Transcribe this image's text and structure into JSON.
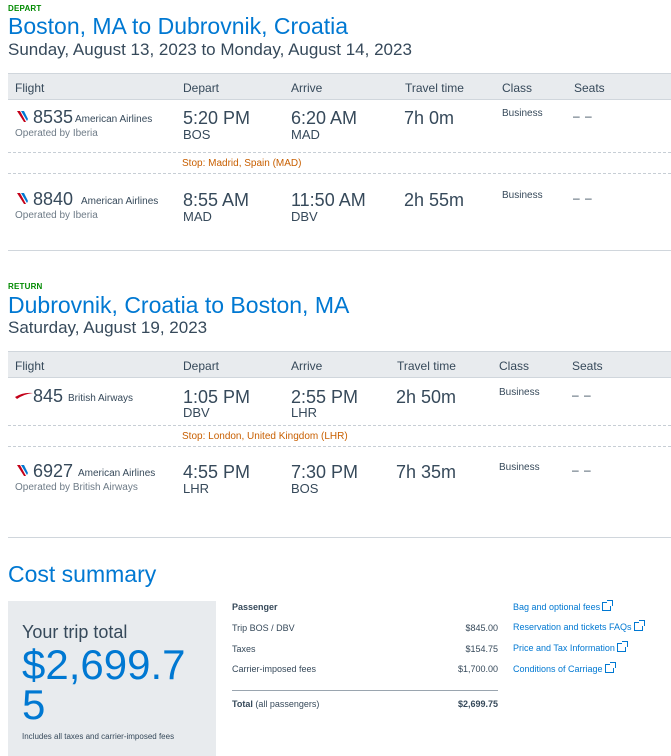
{
  "depart": {
    "label": "DEPART",
    "route": "Boston, MA to Dubrovnik, Croatia",
    "dates": "Sunday, August 13, 2023 to Monday, August 14, 2023",
    "headers": {
      "flight": "Flight",
      "depart": "Depart",
      "arrive": "Arrive",
      "travel": "Travel time",
      "class": "Class",
      "seats": "Seats"
    },
    "flights": [
      {
        "number": "8535",
        "carrier": "American Airlines",
        "operated": "Operated by Iberia",
        "dep_time": "5:20 PM",
        "dep_code": "BOS",
        "arr_time": "6:20 AM",
        "arr_code": "MAD",
        "travel": "7h 0m",
        "class": "Business",
        "seats": "– –",
        "logo": "american-airlines-logo"
      },
      {
        "number": "8840",
        "carrier": "American Airlines",
        "operated": "Operated by Iberia",
        "dep_time": "8:55 AM",
        "dep_code": "MAD",
        "arr_time": "11:50 AM",
        "arr_code": "DBV",
        "travel": "2h 55m",
        "class": "Business",
        "seats": "– –",
        "logo": "american-airlines-logo"
      }
    ],
    "stop": "Stop: Madrid, Spain (MAD)"
  },
  "return": {
    "label": "RETURN",
    "route": "Dubrovnik, Croatia to Boston, MA",
    "dates": "Saturday, August 19, 2023",
    "headers": {
      "flight": "Flight",
      "depart": "Depart",
      "arrive": "Arrive",
      "travel": "Travel time",
      "class": "Class",
      "seats": "Seats"
    },
    "flights": [
      {
        "number": "845",
        "carrier": "British Airways",
        "operated": "",
        "dep_time": "1:05 PM",
        "dep_code": "DBV",
        "arr_time": "2:55 PM",
        "arr_code": "LHR",
        "travel": "2h 50m",
        "class": "Business",
        "seats": "– –",
        "logo": "british-airways-logo"
      },
      {
        "number": "6927",
        "carrier": "American Airlines",
        "operated": "Operated by British Airways",
        "dep_time": "4:55 PM",
        "dep_code": "LHR",
        "arr_time": "7:30 PM",
        "arr_code": "BOS",
        "travel": "7h 35m",
        "class": "Business",
        "seats": "– –",
        "logo": "american-airlines-logo"
      }
    ],
    "stop": "Stop: London, United Kingdom (LHR)"
  },
  "cost": {
    "title": "Cost summary",
    "trip_total_label": "Your trip total",
    "trip_total": "$2,699.75",
    "note": "Includes all taxes and carrier-imposed fees",
    "passenger_heading": "Passenger",
    "rows": [
      {
        "label": "Trip BOS / DBV",
        "value": "$845.00"
      },
      {
        "label": "Taxes",
        "value": "$154.75"
      },
      {
        "label": "Carrier-imposed fees",
        "value": "$1,700.00"
      }
    ],
    "total_label": "Total",
    "total_suffix": "(all passengers)",
    "total_value": "$2,699.75",
    "links": [
      "Bag and optional fees",
      "Reservation and tickets FAQs",
      "Price and Tax Information",
      "Conditions of Carriage"
    ]
  },
  "colors": {
    "accent": "#0078d2",
    "stop": "#c85f00",
    "label_green": "#008a00",
    "aa_red": "#c30019",
    "aa_blue": "#0078d2"
  }
}
